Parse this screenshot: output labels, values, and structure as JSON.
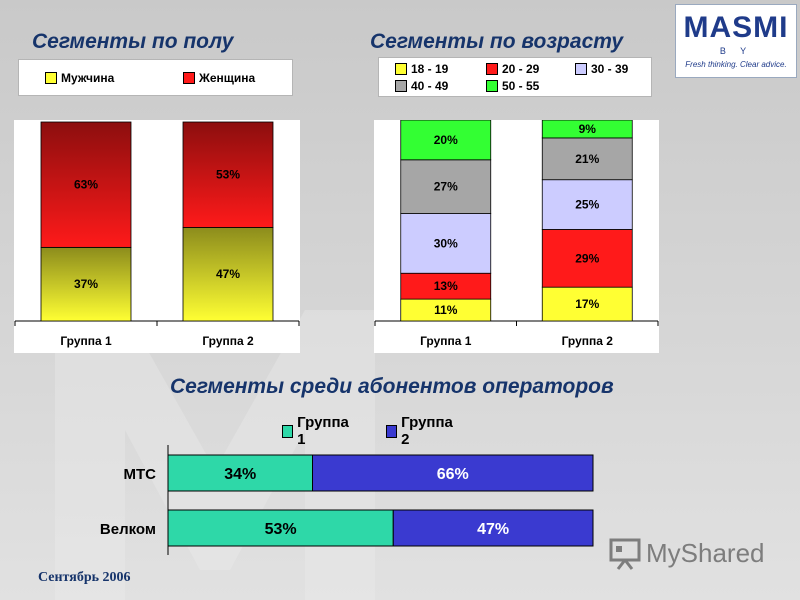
{
  "titles": {
    "gender": "Сегменты по полу",
    "age": "Сегменты по возрасту",
    "operators": "Сегменты среди абонентов операторов"
  },
  "logo": {
    "brand": "MASMI",
    "sub": "B Y",
    "tagline": "Fresh thinking. Clear advice."
  },
  "footer": {
    "date": "Сентябрь 2006"
  },
  "watermark": {
    "text": "MyShared"
  },
  "colors": {
    "title": "#16346b",
    "yellow": "#ffff33",
    "red": "#ff1a1a",
    "lavender": "#ccccff",
    "gray": "#a6a6a6",
    "green": "#33ff33",
    "teal": "#2ed8a8",
    "blue": "#3a3ad0"
  },
  "chart_data": [
    {
      "type": "bar",
      "stacked": true,
      "title": "Сегменты по полу",
      "categories": [
        "Группа 1",
        "Группа 2"
      ],
      "series": [
        {
          "name": "Мужчина",
          "values": [
            37,
            47
          ],
          "labels": [
            "37%",
            "47%"
          ],
          "color": "#ffff33"
        },
        {
          "name": "Женщина",
          "values": [
            63,
            53
          ],
          "labels": [
            "63%",
            "53%"
          ],
          "color": "#ff1a1a"
        }
      ],
      "ylim": [
        0,
        100
      ],
      "legend": "top"
    },
    {
      "type": "bar",
      "stacked": true,
      "title": "Сегменты по возрасту",
      "categories": [
        "Группа 1",
        "Группа 2"
      ],
      "series": [
        {
          "name": "18 - 19",
          "values": [
            11,
            17
          ],
          "labels": [
            "11%",
            "17%"
          ],
          "color": "#ffff33"
        },
        {
          "name": "20 - 29",
          "values": [
            13,
            29
          ],
          "labels": [
            "13%",
            "29%"
          ],
          "color": "#ff1a1a"
        },
        {
          "name": "30 - 39",
          "values": [
            30,
            25
          ],
          "labels": [
            "30%",
            "25%"
          ],
          "color": "#ccccff"
        },
        {
          "name": "40 - 49",
          "values": [
            27,
            21
          ],
          "labels": [
            "27%",
            "21%"
          ],
          "color": "#a6a6a6"
        },
        {
          "name": "50 - 55",
          "values": [
            20,
            9
          ],
          "labels": [
            "20%",
            "9%"
          ],
          "color": "#33ff33"
        }
      ],
      "ylim": [
        0,
        100
      ],
      "legend": "top"
    },
    {
      "type": "bar",
      "orientation": "horizontal",
      "stacked": true,
      "title": "Сегменты среди абонентов операторов",
      "categories": [
        "МТС",
        "Велком"
      ],
      "series": [
        {
          "name": "Группа 1",
          "values": [
            34,
            53
          ],
          "labels": [
            "34%",
            "53%"
          ],
          "color": "#2ed8a8"
        },
        {
          "name": "Группа 2",
          "values": [
            66,
            47
          ],
          "labels": [
            "66%",
            "47%"
          ],
          "color": "#3a3ad0"
        }
      ],
      "xlim": [
        0,
        100
      ],
      "legend": "top"
    }
  ]
}
